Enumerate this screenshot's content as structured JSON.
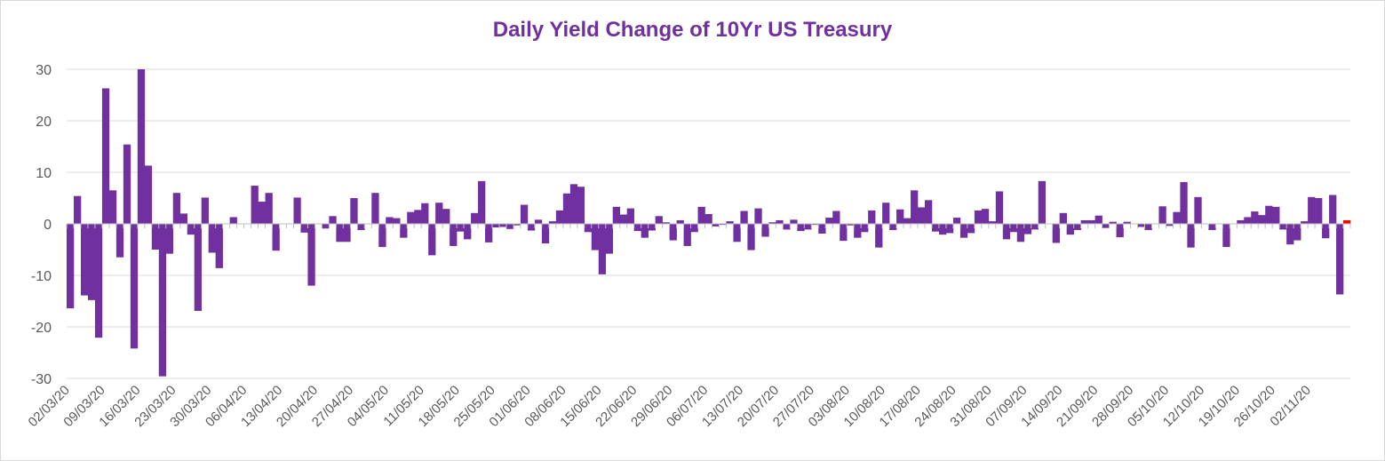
{
  "chart_data": {
    "type": "bar",
    "title": "Daily Yield Change of 10Yr US Treasury",
    "xlabel": "",
    "ylabel": "",
    "ylim": [
      -30,
      30
    ],
    "yticks": [
      30,
      20,
      10,
      0,
      -10,
      -20,
      -30
    ],
    "x_tick_labels": [
      "02/03/20",
      "09/03/20",
      "16/03/20",
      "23/03/20",
      "30/03/20",
      "06/04/20",
      "13/04/20",
      "20/04/20",
      "27/04/20",
      "04/05/20",
      "11/05/20",
      "18/05/20",
      "25/05/20",
      "01/06/20",
      "08/06/20",
      "15/06/20",
      "22/06/20",
      "29/06/20",
      "06/07/20",
      "13/07/20",
      "20/07/20",
      "27/07/20",
      "03/08/20",
      "10/08/20",
      "17/08/20",
      "24/08/20",
      "31/08/20",
      "07/09/20",
      "14/09/20",
      "21/09/20",
      "28/09/20",
      "05/10/20",
      "12/10/20",
      "19/10/20",
      "26/10/20",
      "02/11/20"
    ],
    "bar_color": "#7030a0",
    "highlight_color": "#ff0000",
    "grid": true,
    "legend": "none",
    "values": [
      -16.4,
      5.4,
      -13.9,
      -14.8,
      -22.1,
      26.3,
      6.5,
      -6.5,
      15.4,
      -24.2,
      30.0,
      11.3,
      -5.0,
      -29.6,
      -5.8,
      6.0,
      2.0,
      -2.1,
      -16.9,
      5.1,
      -5.6,
      -8.6,
      0.0,
      1.3,
      0.0,
      0.0,
      7.4,
      4.3,
      6.0,
      -5.2,
      0.0,
      0.0,
      5.1,
      -1.7,
      -12.0,
      0.0,
      -0.9,
      1.5,
      -3.5,
      -3.5,
      5.0,
      -1.2,
      0.0,
      6.0,
      -4.5,
      1.3,
      1.1,
      -2.7,
      2.3,
      2.7,
      4.0,
      -6.1,
      4.1,
      2.9,
      -4.3,
      -1.5,
      -3.0,
      2.1,
      8.3,
      -3.6,
      -0.7,
      -0.6,
      -1.0,
      -0.3,
      3.7,
      -1.3,
      0.8,
      -3.8,
      0.5,
      2.6,
      5.9,
      7.7,
      7.2,
      -1.6,
      -5.1,
      -9.8,
      -5.8,
      3.3,
      1.8,
      3.0,
      -1.4,
      -2.7,
      -1.3,
      1.5,
      0.3,
      -3.2,
      0.7,
      -4.3,
      -1.6,
      3.3,
      1.9,
      -0.5,
      -0.2,
      0.5,
      -3.5,
      2.5,
      -5.1,
      3.0,
      -2.5,
      0.3,
      0.7,
      -1.1,
      0.8,
      -1.4,
      -1.1,
      -0.2,
      -1.9,
      1.2,
      2.5,
      -3.3,
      -0.3,
      -2.7,
      -1.6,
      2.6,
      -4.6,
      4.1,
      -1.2,
      2.8,
      1.1,
      6.5,
      3.2,
      4.6,
      -1.5,
      -2.1,
      -1.8,
      1.2,
      -2.7,
      -1.8,
      2.6,
      2.9,
      0.5,
      6.3,
      -3.0,
      -1.6,
      -3.5,
      -2.0,
      -1.1,
      8.3,
      0.0,
      -3.7,
      2.1,
      -2.1,
      -1.2,
      0.7,
      0.7,
      1.6,
      -0.8,
      0.4,
      -2.6,
      0.4,
      0.0,
      -0.6,
      -1.2,
      0.0,
      3.4,
      -0.4,
      2.3,
      8.1,
      -4.6,
      5.2,
      0.0,
      -1.2,
      0.0,
      -4.5,
      0.0,
      0.7,
      1.3,
      2.4,
      1.7,
      3.5,
      3.3,
      -1.1,
      -4.0,
      -3.2,
      0.5,
      5.2,
      5.0,
      -2.8,
      5.6,
      -13.7,
      0.7
    ]
  }
}
